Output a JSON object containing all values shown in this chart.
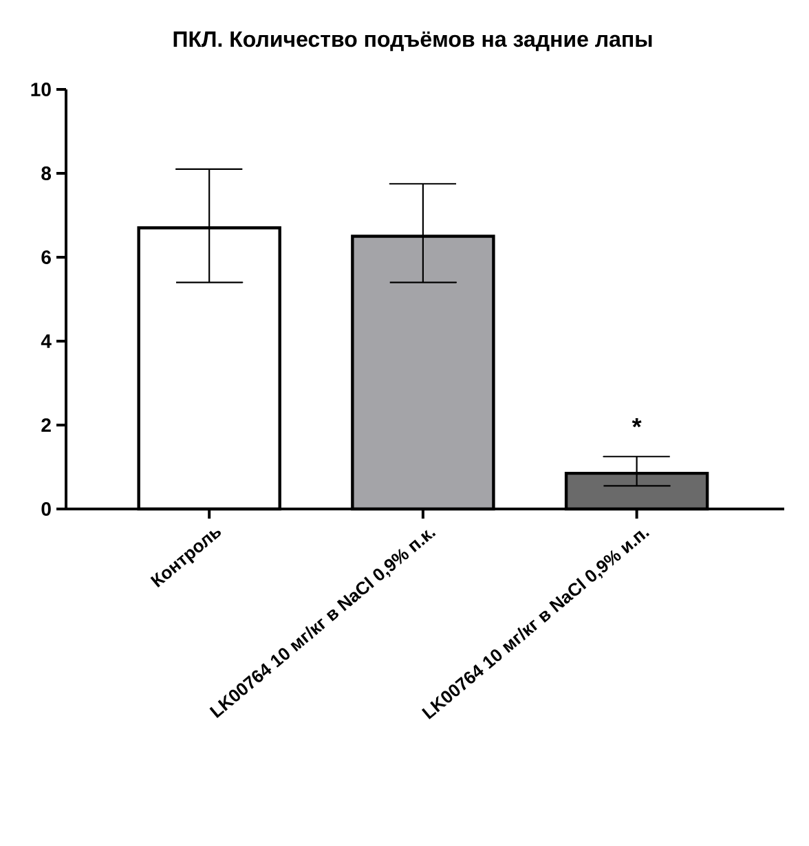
{
  "chart_data": {
    "type": "bar",
    "title": "ПКЛ. Количество подъёмов на задние лапы",
    "categories": [
      "Контроль",
      "LK00764 10 мг/кг в NaCl 0,9% п.к.",
      "LK00764 10 мг/кг в NaCl 0,9% и.п."
    ],
    "values": [
      6.7,
      6.5,
      0.85
    ],
    "errors": [
      [
        5.4,
        8.1
      ],
      [
        5.4,
        7.75
      ],
      [
        0.55,
        1.25
      ]
    ],
    "colors": [
      "#ffffff",
      "#a4a4a8",
      "#6a6a6a"
    ],
    "ylim": [
      0,
      10
    ],
    "yticks": [
      0,
      2,
      4,
      6,
      8,
      10
    ],
    "annotations": [
      "*"
    ]
  }
}
